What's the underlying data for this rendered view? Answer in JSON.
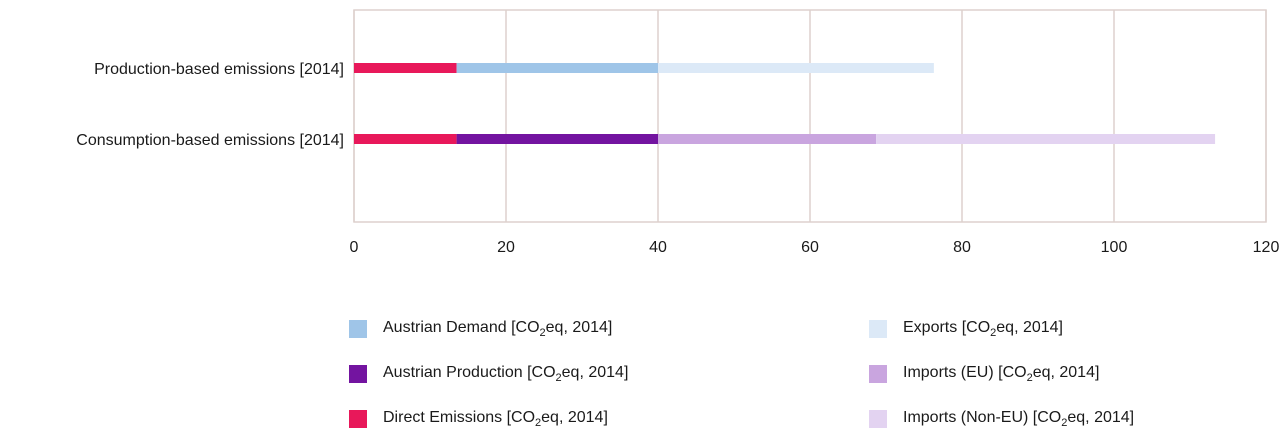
{
  "chart_data": {
    "type": "bar",
    "orientation": "horizontal",
    "stacked": true,
    "categories": [
      "Production-based emissions [2014]",
      "Consumption-based emissions [2014]"
    ],
    "series": [
      {
        "key": "direct",
        "name": "Direct Emissions [CO2eq, 2014]",
        "color": "#e8185a",
        "values": [
          13.5,
          13.5
        ]
      },
      {
        "key": "demand",
        "name": "Austrian Demand [CO2eq, 2014]",
        "color": "#9fc5e8",
        "values": [
          26.5,
          null
        ]
      },
      {
        "key": "exports",
        "name": "Exports [CO2eq, 2014]",
        "color": "#dce9f7",
        "values": [
          36.3,
          null
        ]
      },
      {
        "key": "production",
        "name": "Austrian Production [CO2eq, 2014]",
        "color": "#7314a0",
        "values": [
          null,
          26.5
        ]
      },
      {
        "key": "imports_eu",
        "name": "Imports (EU) [CO2eq, 2014]",
        "color": "#c9a5df",
        "values": [
          null,
          28.7
        ]
      },
      {
        "key": "imports_non_eu",
        "name": "Imports (Non-EU) [CO2eq, 2014]",
        "color": "#e3d3f1",
        "values": [
          null,
          44.6
        ]
      }
    ],
    "x_ticks": [
      0,
      20,
      40,
      60,
      80,
      100,
      120
    ],
    "xlim": [
      0,
      120
    ],
    "xlabel": "",
    "ylabel": "",
    "title": "",
    "grid": true,
    "grid_color": "#ddd1cd",
    "legend_position": "bottom"
  },
  "legend": {
    "items": [
      {
        "key": "demand",
        "pre": "Austrian Demand [CO",
        "sub": "2",
        "post": "eq, 2014]"
      },
      {
        "key": "production",
        "pre": "Austrian Production [CO",
        "sub": "2",
        "post": "eq, 2014]"
      },
      {
        "key": "direct",
        "pre": "Direct Emissions [CO",
        "sub": "2",
        "post": "eq, 2014]"
      },
      {
        "key": "exports",
        "pre": "Exports [CO",
        "sub": "2",
        "post": "eq, 2014]"
      },
      {
        "key": "imports_eu",
        "pre": "Imports (EU) [CO",
        "sub": "2",
        "post": "eq, 2014]"
      },
      {
        "key": "imports_non_eu",
        "pre": "Imports (Non-EU) [CO",
        "sub": "2",
        "post": "eq, 2014]"
      }
    ]
  }
}
